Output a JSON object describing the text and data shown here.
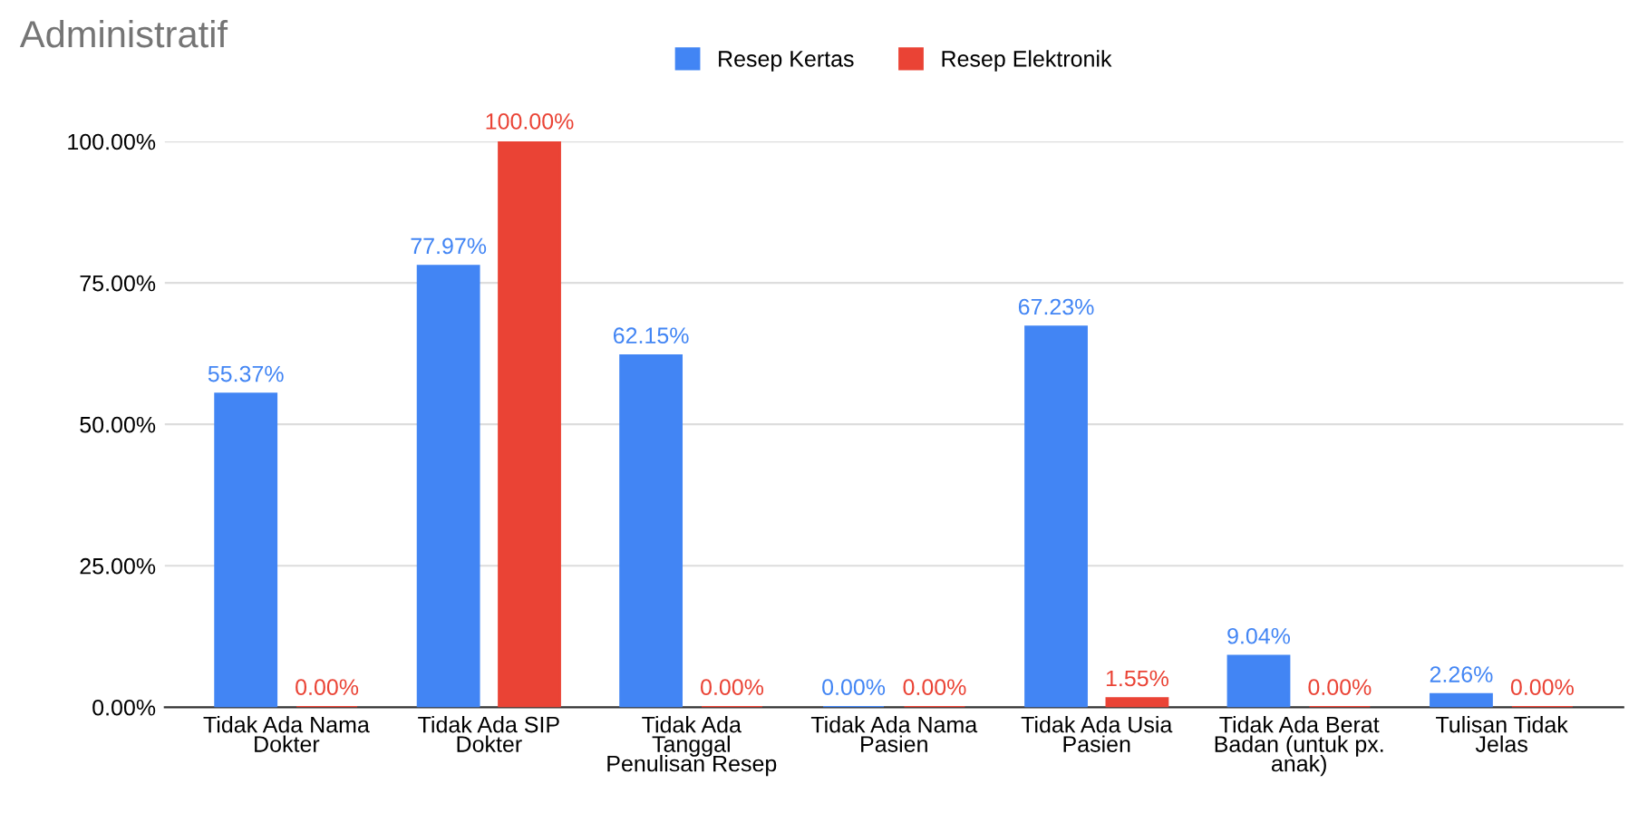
{
  "chart_data": {
    "type": "bar",
    "title": "Administratif",
    "categories": [
      "Tidak Ada Nama\nDokter",
      "Tidak Ada SIP\nDokter",
      "Tidak Ada\nTanggal\nPenulisan Resep",
      "Tidak Ada Nama\nPasien",
      "Tidak Ada Usia\nPasien",
      "Tidak Ada Berat\nBadan (untuk px.\nanak)",
      "Tulisan Tidak\nJelas"
    ],
    "series": [
      {
        "name": "Resep Kertas",
        "color": "#4285f4",
        "values": [
          55.37,
          77.97,
          62.15,
          0,
          67.23,
          9.04,
          2.26
        ],
        "value_labels": [
          "55.37%",
          "77.97%",
          "62.15%",
          "0.00%",
          "67.23%",
          "9.04%",
          "2.26%"
        ]
      },
      {
        "name": "Resep Elektronik",
        "color": "#ea4335",
        "values": [
          0,
          100,
          0,
          0,
          1.55,
          0,
          0
        ],
        "value_labels": [
          "0.00%",
          "100.00%",
          "0.00%",
          "0.00%",
          "1.55%",
          "0.00%",
          "0.00%"
        ]
      }
    ],
    "ylim": [
      0,
      100
    ],
    "yticks": [
      {
        "value": 0,
        "label": "0.00%"
      },
      {
        "value": 25,
        "label": "25.00%"
      },
      {
        "value": 50,
        "label": "50.00%"
      },
      {
        "value": 75,
        "label": "75.00%"
      },
      {
        "value": 100,
        "label": "100.00%"
      }
    ],
    "grid": "y",
    "legend": "top"
  }
}
